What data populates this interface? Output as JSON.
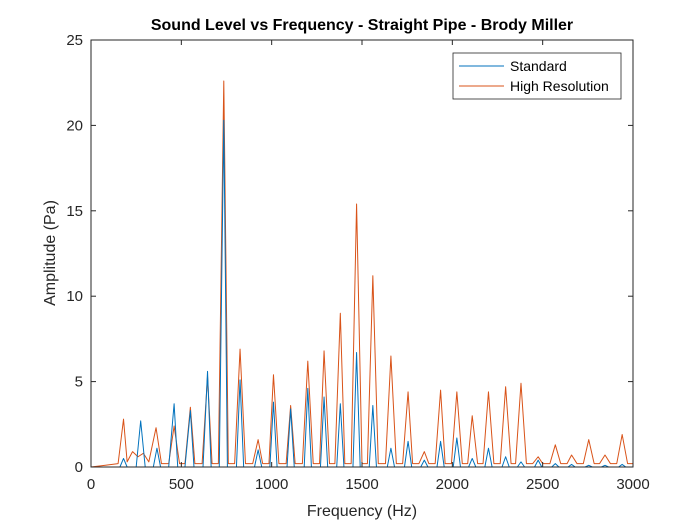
{
  "chart_data": {
    "type": "line",
    "title": "Sound Level vs Frequency - Straight Pipe - Brody Miller",
    "xlabel": "Frequency (Hz)",
    "ylabel": "Amplitude (Pa)",
    "xlim": [
      0,
      3000
    ],
    "ylim": [
      0,
      25
    ],
    "xticks": [
      0,
      500,
      1000,
      1500,
      2000,
      2500,
      3000
    ],
    "yticks": [
      0,
      5,
      10,
      15,
      20,
      25
    ],
    "grid": false,
    "legend_position": "top-right",
    "series": [
      {
        "name": "Standard",
        "color": "#0072BD",
        "points": [
          [
            0,
            0
          ],
          [
            160,
            0
          ],
          [
            180,
            0.5
          ],
          [
            200,
            0
          ],
          [
            250,
            0
          ],
          [
            275,
            2.7
          ],
          [
            300,
            0
          ],
          [
            345,
            0
          ],
          [
            365,
            1.1
          ],
          [
            385,
            0
          ],
          [
            430,
            0
          ],
          [
            460,
            3.7
          ],
          [
            480,
            0
          ],
          [
            520,
            0
          ],
          [
            550,
            3.3
          ],
          [
            570,
            0
          ],
          [
            620,
            0
          ],
          [
            645,
            5.6
          ],
          [
            665,
            0
          ],
          [
            710,
            0
          ],
          [
            735,
            20.3
          ],
          [
            755,
            0
          ],
          [
            805,
            0
          ],
          [
            825,
            5.1
          ],
          [
            845,
            0
          ],
          [
            905,
            0
          ],
          [
            925,
            1.0
          ],
          [
            945,
            0
          ],
          [
            990,
            0
          ],
          [
            1010,
            3.8
          ],
          [
            1030,
            0
          ],
          [
            1085,
            0
          ],
          [
            1105,
            3.4
          ],
          [
            1125,
            0
          ],
          [
            1180,
            0
          ],
          [
            1200,
            4.6
          ],
          [
            1220,
            0
          ],
          [
            1270,
            0
          ],
          [
            1290,
            4.1
          ],
          [
            1310,
            0
          ],
          [
            1360,
            0
          ],
          [
            1380,
            3.7
          ],
          [
            1400,
            0
          ],
          [
            1450,
            0
          ],
          [
            1470,
            6.7
          ],
          [
            1490,
            0
          ],
          [
            1540,
            0
          ],
          [
            1560,
            3.6
          ],
          [
            1580,
            0
          ],
          [
            1640,
            0
          ],
          [
            1660,
            1.1
          ],
          [
            1680,
            0
          ],
          [
            1735,
            0
          ],
          [
            1755,
            1.5
          ],
          [
            1775,
            0
          ],
          [
            1825,
            0
          ],
          [
            1845,
            0.4
          ],
          [
            1865,
            0
          ],
          [
            1915,
            0
          ],
          [
            1935,
            1.5
          ],
          [
            1955,
            0
          ],
          [
            2005,
            0
          ],
          [
            2025,
            1.7
          ],
          [
            2045,
            0
          ],
          [
            2090,
            0
          ],
          [
            2110,
            0.5
          ],
          [
            2130,
            0
          ],
          [
            2180,
            0
          ],
          [
            2200,
            1.1
          ],
          [
            2220,
            0
          ],
          [
            2275,
            0
          ],
          [
            2295,
            0.6
          ],
          [
            2315,
            0
          ],
          [
            2360,
            0
          ],
          [
            2380,
            0.3
          ],
          [
            2400,
            0
          ],
          [
            2455,
            0
          ],
          [
            2475,
            0.4
          ],
          [
            2495,
            0
          ],
          [
            2550,
            0
          ],
          [
            2570,
            0.2
          ],
          [
            2590,
            0
          ],
          [
            2640,
            0
          ],
          [
            2660,
            0.15
          ],
          [
            2680,
            0
          ],
          [
            2735,
            0
          ],
          [
            2755,
            0.1
          ],
          [
            2775,
            0
          ],
          [
            2825,
            0
          ],
          [
            2845,
            0.1
          ],
          [
            2865,
            0
          ],
          [
            2920,
            0
          ],
          [
            2940,
            0.15
          ],
          [
            2960,
            0
          ],
          [
            3000,
            0
          ]
        ]
      },
      {
        "name": "High Resolution",
        "color": "#D95319",
        "points": [
          [
            0,
            0
          ],
          [
            80,
            0.1
          ],
          [
            150,
            0.2
          ],
          [
            180,
            2.8
          ],
          [
            200,
            0.3
          ],
          [
            230,
            0.9
          ],
          [
            260,
            0.6
          ],
          [
            290,
            0.8
          ],
          [
            320,
            0.3
          ],
          [
            360,
            2.3
          ],
          [
            390,
            0.2
          ],
          [
            430,
            0.2
          ],
          [
            460,
            2.4
          ],
          [
            490,
            0.2
          ],
          [
            520,
            0.2
          ],
          [
            550,
            3.5
          ],
          [
            575,
            0.2
          ],
          [
            615,
            0.2
          ],
          [
            645,
            5.3
          ],
          [
            670,
            0.2
          ],
          [
            705,
            0.2
          ],
          [
            735,
            22.6
          ],
          [
            760,
            0.2
          ],
          [
            795,
            0.2
          ],
          [
            825,
            6.9
          ],
          [
            855,
            0.2
          ],
          [
            895,
            0.2
          ],
          [
            925,
            1.6
          ],
          [
            950,
            0.2
          ],
          [
            985,
            0.2
          ],
          [
            1010,
            5.4
          ],
          [
            1040,
            0.2
          ],
          [
            1080,
            0.2
          ],
          [
            1105,
            3.6
          ],
          [
            1130,
            0.2
          ],
          [
            1170,
            0.2
          ],
          [
            1200,
            6.2
          ],
          [
            1230,
            0.2
          ],
          [
            1265,
            0.2
          ],
          [
            1290,
            6.8
          ],
          [
            1320,
            0.2
          ],
          [
            1350,
            0.2
          ],
          [
            1380,
            9.0
          ],
          [
            1405,
            0.2
          ],
          [
            1440,
            0.2
          ],
          [
            1470,
            15.4
          ],
          [
            1500,
            0.2
          ],
          [
            1530,
            0.2
          ],
          [
            1560,
            11.2
          ],
          [
            1590,
            0.2
          ],
          [
            1630,
            0.2
          ],
          [
            1660,
            6.5
          ],
          [
            1690,
            0.2
          ],
          [
            1725,
            0.2
          ],
          [
            1755,
            4.4
          ],
          [
            1780,
            0.2
          ],
          [
            1815,
            0.2
          ],
          [
            1845,
            0.9
          ],
          [
            1870,
            0.2
          ],
          [
            1905,
            0.2
          ],
          [
            1935,
            4.5
          ],
          [
            1960,
            0.2
          ],
          [
            1995,
            0.2
          ],
          [
            2025,
            4.4
          ],
          [
            2055,
            0.2
          ],
          [
            2085,
            0.2
          ],
          [
            2110,
            3.0
          ],
          [
            2140,
            0.2
          ],
          [
            2170,
            0.2
          ],
          [
            2200,
            4.4
          ],
          [
            2230,
            0.2
          ],
          [
            2265,
            0.2
          ],
          [
            2295,
            4.7
          ],
          [
            2325,
            0.2
          ],
          [
            2350,
            0.2
          ],
          [
            2380,
            4.9
          ],
          [
            2410,
            0.2
          ],
          [
            2445,
            0.2
          ],
          [
            2475,
            0.6
          ],
          [
            2500,
            0.2
          ],
          [
            2540,
            0.2
          ],
          [
            2570,
            1.3
          ],
          [
            2600,
            0.2
          ],
          [
            2635,
            0.2
          ],
          [
            2660,
            0.7
          ],
          [
            2690,
            0.2
          ],
          [
            2725,
            0.2
          ],
          [
            2755,
            1.6
          ],
          [
            2785,
            0.2
          ],
          [
            2815,
            0.2
          ],
          [
            2845,
            0.7
          ],
          [
            2875,
            0.2
          ],
          [
            2910,
            0.2
          ],
          [
            2940,
            1.9
          ],
          [
            2970,
            0.2
          ],
          [
            3000,
            0.2
          ]
        ]
      }
    ]
  }
}
